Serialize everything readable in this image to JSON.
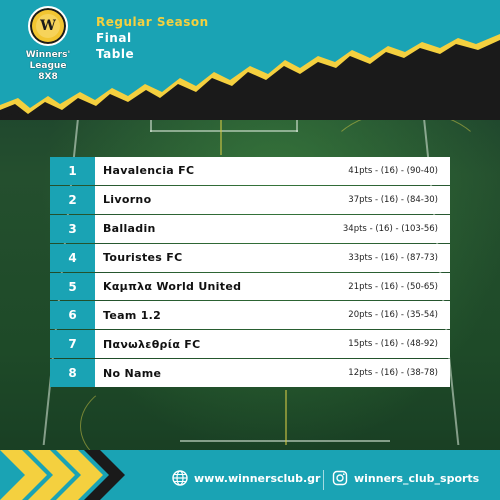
{
  "header": {
    "logo_text": "W",
    "league_line1": "Winners'",
    "league_line2": "League",
    "league_line3": "8X8",
    "title_line1": "Regular Season",
    "title_line2": "Final",
    "title_line3": "Table"
  },
  "standings": [
    {
      "rank": "1",
      "team": "Havalencia FC",
      "stats": "41pts - (16) - (90-40)"
    },
    {
      "rank": "2",
      "team": "Livorno",
      "stats": "37pts - (16) - (84-30)"
    },
    {
      "rank": "3",
      "team": "Balladin",
      "stats": "34pts - (16) - (103-56)"
    },
    {
      "rank": "4",
      "team": "Touristes FC",
      "stats": "33pts - (16) - (87-73)"
    },
    {
      "rank": "5",
      "team": "Καμπλα World United",
      "stats": "21pts - (16) - (50-65)"
    },
    {
      "rank": "6",
      "team": "Team 1.2",
      "stats": "20pts - (16) - (35-54)"
    },
    {
      "rank": "7",
      "team": "Πανωλεθρία FC",
      "stats": "15pts - (16) - (48-92)"
    },
    {
      "rank": "8",
      "team": "No Name",
      "stats": "12pts - (16) - (38-78)"
    }
  ],
  "footer": {
    "website": "www.winnersclub.gr",
    "instagram": "winners_club_sports",
    "website_icon": "globe-icon",
    "instagram_icon": "instagram-icon"
  },
  "colors": {
    "teal": "#1aa3b4",
    "yellow": "#f4d03f",
    "dark": "#1a1a1a"
  }
}
